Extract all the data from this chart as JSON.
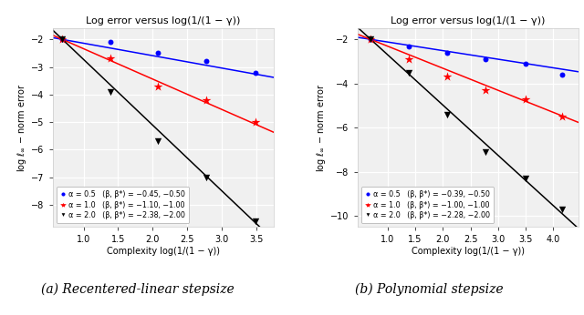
{
  "xlabel": "Complexity log(1/(1 − γ))",
  "ylabel": "log $\\ell_\\infty$ − norm error",
  "subplot_a_title": "Log error versus log(1/(1 − γ))",
  "subplot_b_title": "Log error versus log(1/(1 − γ))",
  "caption_a": "(a) Recentered-linear stepsize",
  "caption_b": "(b) Polynomial stepsize",
  "plot_a": {
    "blue": {
      "x": [
        0.693,
        1.386,
        2.079,
        2.773,
        3.497
      ],
      "y": [
        -2.0,
        -2.1,
        -2.5,
        -2.8,
        -3.2
      ],
      "slope": -0.45,
      "intercept": -1.69
    },
    "red": {
      "x": [
        0.693,
        1.386,
        2.079,
        2.773,
        3.497
      ],
      "y": [
        -2.0,
        -2.7,
        -3.7,
        -4.2,
        -5.0
      ],
      "slope": -1.1,
      "intercept": -1.24
    },
    "black": {
      "x": [
        0.693,
        1.386,
        2.079,
        2.773,
        3.497
      ],
      "y": [
        -2.0,
        -3.9,
        -5.7,
        -7.0,
        -8.6
      ],
      "slope": -2.38,
      "intercept": -0.35
    },
    "xlim": [
      0.55,
      3.75
    ],
    "ylim": [
      -8.8,
      -1.6
    ],
    "xticks": [
      1.0,
      1.5,
      2.0,
      2.5,
      3.0,
      3.5
    ],
    "yticks": [
      -2,
      -3,
      -4,
      -5,
      -6,
      -7,
      -8
    ],
    "legend": [
      "α = 0.5   (β, β*) = −0.45, −0.50",
      "α = 1.0   (β, β*) = −1.10, −1.00",
      "α = 2.0   (β, β*) = −2.38, −2.00"
    ]
  },
  "plot_b": {
    "blue": {
      "x": [
        0.693,
        1.386,
        2.079,
        2.773,
        3.497,
        4.159
      ],
      "y": [
        -2.0,
        -2.3,
        -2.6,
        -2.9,
        -3.1,
        -3.6
      ],
      "slope": -0.39,
      "intercept": -1.73
    },
    "red": {
      "x": [
        0.693,
        1.386,
        2.079,
        2.773,
        3.497,
        4.159
      ],
      "y": [
        -2.0,
        -2.9,
        -3.7,
        -4.3,
        -4.7,
        -5.5
      ],
      "slope": -1.0,
      "intercept": -1.31
    },
    "black": {
      "x": [
        0.693,
        1.386,
        2.079,
        2.773,
        3.497,
        4.159
      ],
      "y": [
        -2.0,
        -3.5,
        -5.4,
        -7.1,
        -8.3,
        -9.7
      ],
      "slope": -2.28,
      "intercept": -0.42
    },
    "xlim": [
      0.45,
      4.45
    ],
    "ylim": [
      -10.5,
      -1.5
    ],
    "xticks": [
      1.0,
      1.5,
      2.0,
      2.5,
      3.0,
      3.5,
      4.0
    ],
    "yticks": [
      -2,
      -4,
      -6,
      -8,
      -10
    ],
    "legend": [
      "α = 0.5   (β, β*) = −0.39, −0.50",
      "α = 1.0   (β, β*) = −1.00, −1.00",
      "α = 2.0   (β, β*) = −2.28, −2.00"
    ]
  }
}
